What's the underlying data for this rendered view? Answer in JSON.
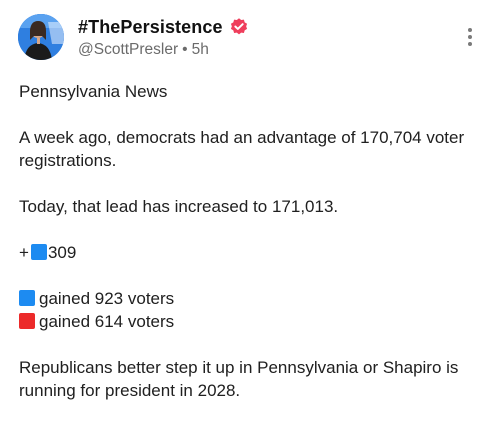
{
  "post": {
    "display_name": "#ThePersistence",
    "handle": "@ScottPresler",
    "separator": "•",
    "time": "5h",
    "verified_icon": "verified-badge-icon",
    "menu_icon": "more-vertical-icon",
    "colors": {
      "verified": "#ef3e5c",
      "blue_square": "#1d8bf1",
      "red_square": "#ec2a2a"
    }
  },
  "content": {
    "heading": "Pennsylvania News",
    "p1": "A week ago, democrats had an advantage of 170,704 voter registrations.",
    "p2": "Today, that lead has increased to 171,013.",
    "delta_prefix": "+",
    "delta_value": "309",
    "line_blue": "gained 923 voters",
    "line_red": "gained 614 voters",
    "p_last": "Republicans better step it up in Pennsylvania or Shapiro is running for president in 2028."
  }
}
